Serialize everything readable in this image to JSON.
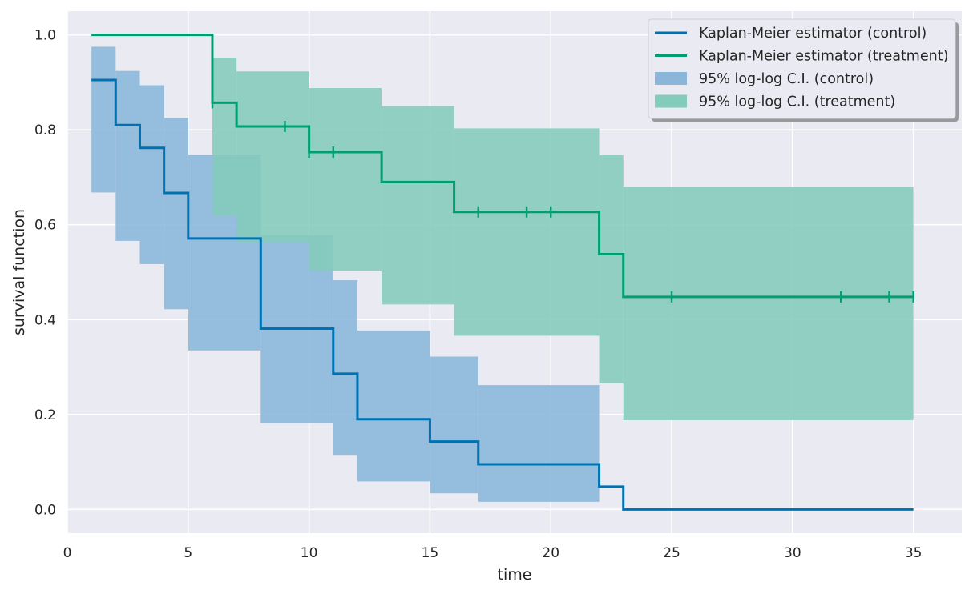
{
  "chart_data": {
    "type": "line",
    "xlabel": "time",
    "ylabel": "survival function",
    "xlim": [
      0,
      37
    ],
    "ylim": [
      -0.05,
      1.05
    ],
    "xticks": [
      0,
      5,
      10,
      15,
      20,
      25,
      30,
      35
    ],
    "xtick_labels": [
      "0",
      "5",
      "10",
      "15",
      "20",
      "25",
      "30",
      "35"
    ],
    "yticks": [
      0.0,
      0.2,
      0.4,
      0.6,
      0.8,
      1.0
    ],
    "ytick_labels": [
      "0.0",
      "0.2",
      "0.4",
      "0.6",
      "0.8",
      "1.0"
    ],
    "grid": true,
    "legend_position": "top-right",
    "bands": [
      {
        "name": "95% log-log C.I. (control)",
        "color": "#89b6d9",
        "steps": [
          {
            "x0": 1,
            "x1": 2,
            "lo": 0.668,
            "hi": 0.975
          },
          {
            "x0": 2,
            "x1": 3,
            "lo": 0.566,
            "hi": 0.924
          },
          {
            "x0": 3,
            "x1": 4,
            "lo": 0.517,
            "hi": 0.894
          },
          {
            "x0": 4,
            "x1": 5,
            "lo": 0.422,
            "hi": 0.825
          },
          {
            "x0": 5,
            "x1": 8,
            "lo": 0.335,
            "hi": 0.748
          },
          {
            "x0": 8,
            "x1": 11,
            "lo": 0.182,
            "hi": 0.578
          },
          {
            "x0": 11,
            "x1": 12,
            "lo": 0.115,
            "hi": 0.483
          },
          {
            "x0": 12,
            "x1": 15,
            "lo": 0.059,
            "hi": 0.377
          },
          {
            "x0": 15,
            "x1": 17,
            "lo": 0.034,
            "hi": 0.322
          },
          {
            "x0": 17,
            "x1": 22,
            "lo": 0.016,
            "hi": 0.262
          }
        ]
      },
      {
        "name": "95% log-log C.I. (treatment)",
        "color": "#83cbbb",
        "steps": [
          {
            "x0": 6,
            "x1": 7,
            "lo": 0.62,
            "hi": 0.952
          },
          {
            "x0": 7,
            "x1": 10,
            "lo": 0.563,
            "hi": 0.923
          },
          {
            "x0": 10,
            "x1": 13,
            "lo": 0.503,
            "hi": 0.888
          },
          {
            "x0": 13,
            "x1": 16,
            "lo": 0.432,
            "hi": 0.85
          },
          {
            "x0": 16,
            "x1": 22,
            "lo": 0.366,
            "hi": 0.803
          },
          {
            "x0": 22,
            "x1": 23,
            "lo": 0.266,
            "hi": 0.747
          },
          {
            "x0": 23,
            "x1": 35,
            "lo": 0.188,
            "hi": 0.68
          }
        ]
      }
    ],
    "series": [
      {
        "name": "Kaplan-Meier estimator (control)",
        "color": "#0072b2",
        "steps": [
          [
            1,
            0.905
          ],
          [
            2,
            0.81
          ],
          [
            3,
            0.762
          ],
          [
            4,
            0.667
          ],
          [
            5,
            0.571
          ],
          [
            8,
            0.381
          ],
          [
            11,
            0.286
          ],
          [
            12,
            0.19
          ],
          [
            15,
            0.143
          ],
          [
            17,
            0.095
          ],
          [
            22,
            0.048
          ],
          [
            23,
            0.0
          ]
        ],
        "x_end": 35,
        "censored": []
      },
      {
        "name": "Kaplan-Meier estimator (treatment)",
        "color": "#009e73",
        "steps": [
          [
            1,
            1.0
          ],
          [
            6,
            0.857
          ],
          [
            7,
            0.807
          ],
          [
            10,
            0.753
          ],
          [
            13,
            0.69
          ],
          [
            16,
            0.627
          ],
          [
            22,
            0.538
          ],
          [
            23,
            0.448
          ]
        ],
        "x_end": 35,
        "censored": [
          [
            6,
            0.857
          ],
          [
            9,
            0.807
          ],
          [
            10,
            0.753
          ],
          [
            11,
            0.753
          ],
          [
            17,
            0.627
          ],
          [
            19,
            0.627
          ],
          [
            20,
            0.627
          ],
          [
            25,
            0.448
          ],
          [
            32,
            0.448
          ],
          [
            34,
            0.448
          ],
          [
            35,
            0.448
          ]
        ]
      }
    ],
    "legend": [
      {
        "label": "Kaplan-Meier estimator (control)",
        "kind": "line",
        "color": "#0072b2"
      },
      {
        "label": "Kaplan-Meier estimator (treatment)",
        "kind": "line",
        "color": "#009e73"
      },
      {
        "label": "95% log-log C.I. (control)",
        "kind": "patch",
        "color": "#89b6d9"
      },
      {
        "label": "95% log-log C.I. (treatment)",
        "kind": "patch",
        "color": "#83cbbb"
      }
    ],
    "style": {
      "background": "#eaeaf2",
      "grid_color": "#ffffff",
      "text_color": "#262626"
    }
  }
}
